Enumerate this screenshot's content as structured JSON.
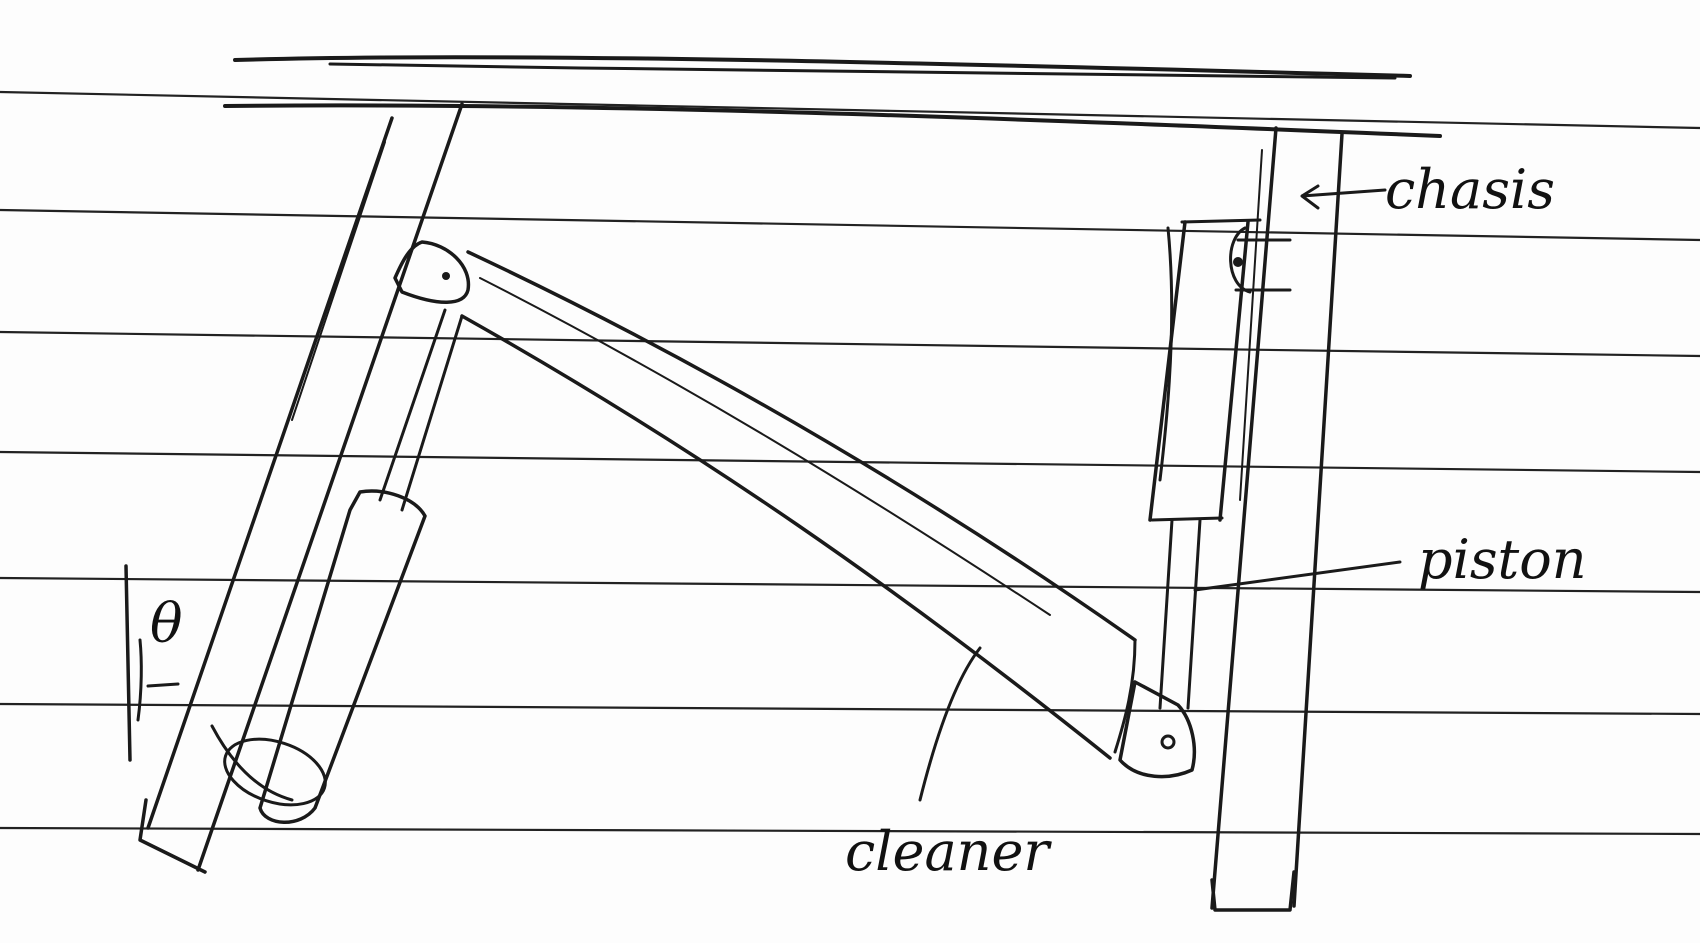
{
  "labels": {
    "chassis": "chasis",
    "piston": "piston",
    "cleaner": "cleaner",
    "angle": "θ"
  },
  "colors": {
    "paper": "#fdfdfd",
    "ink": "#1a1a1a",
    "ruled_line": "#222222"
  }
}
